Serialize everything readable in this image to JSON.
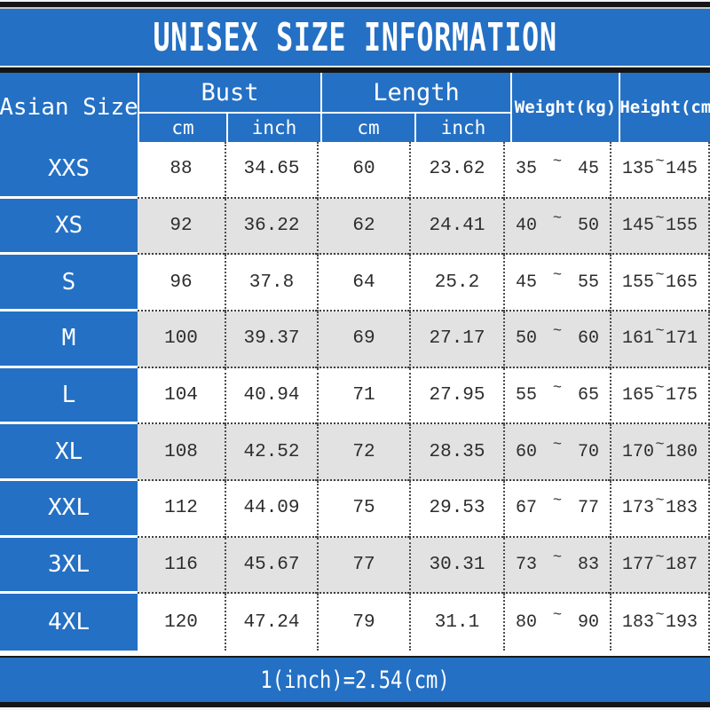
{
  "title": "UNISEX SIZE INFORMATION",
  "footer_note": "1(inch)=2.54(cm)",
  "symbols": {
    "range": "~"
  },
  "colors": {
    "accent_blue": "#2470c4",
    "row_alt_gray": "#e3e2e2",
    "text_dark": "#2d2d2d",
    "header_text": "#ffffff"
  },
  "header": {
    "asian_size": "Asian Size",
    "bust": "Bust",
    "length": "Length",
    "weight": "Weight(kg)",
    "height": "Height(cm)",
    "sub_cm_1": "cm",
    "sub_inch_1": "inch",
    "sub_cm_2": "cm",
    "sub_inch_2": "inch"
  },
  "table": {
    "rows": [
      {
        "size": "XXS",
        "bust_cm": "88",
        "bust_inch": "34.65",
        "length_cm": "60",
        "length_inch": "23.62",
        "weight": [
          "35",
          "45"
        ],
        "height": [
          "135",
          "145"
        ]
      },
      {
        "size": "XS",
        "bust_cm": "92",
        "bust_inch": "36.22",
        "length_cm": "62",
        "length_inch": "24.41",
        "weight": [
          "40",
          "50"
        ],
        "height": [
          "145",
          "155"
        ]
      },
      {
        "size": "S",
        "bust_cm": "96",
        "bust_inch": "37.8",
        "length_cm": "64",
        "length_inch": "25.2",
        "weight": [
          "45",
          "55"
        ],
        "height": [
          "155",
          "165"
        ]
      },
      {
        "size": "M",
        "bust_cm": "100",
        "bust_inch": "39.37",
        "length_cm": "69",
        "length_inch": "27.17",
        "weight": [
          "50",
          "60"
        ],
        "height": [
          "161",
          "171"
        ]
      },
      {
        "size": "L",
        "bust_cm": "104",
        "bust_inch": "40.94",
        "length_cm": "71",
        "length_inch": "27.95",
        "weight": [
          "55",
          "65"
        ],
        "height": [
          "165",
          "175"
        ]
      },
      {
        "size": "XL",
        "bust_cm": "108",
        "bust_inch": "42.52",
        "length_cm": "72",
        "length_inch": "28.35",
        "weight": [
          "60",
          "70"
        ],
        "height": [
          "170",
          "180"
        ]
      },
      {
        "size": "XXL",
        "bust_cm": "112",
        "bust_inch": "44.09",
        "length_cm": "75",
        "length_inch": "29.53",
        "weight": [
          "67",
          "77"
        ],
        "height": [
          "173",
          "183"
        ]
      },
      {
        "size": "3XL",
        "bust_cm": "116",
        "bust_inch": "45.67",
        "length_cm": "77",
        "length_inch": "30.31",
        "weight": [
          "73",
          "83"
        ],
        "height": [
          "177",
          "187"
        ]
      },
      {
        "size": "4XL",
        "bust_cm": "120",
        "bust_inch": "47.24",
        "length_cm": "79",
        "length_inch": "31.1",
        "weight": [
          "80",
          "90"
        ],
        "height": [
          "183",
          "193"
        ]
      }
    ]
  },
  "chart_data": {
    "type": "table",
    "title": "UNISEX SIZE INFORMATION",
    "columns": [
      "Asian Size",
      "Bust cm",
      "Bust inch",
      "Length cm",
      "Length inch",
      "Weight(kg)",
      "Height(cm)"
    ],
    "rows": [
      [
        "XXS",
        88,
        34.65,
        60,
        23.62,
        "35~45",
        "135~145"
      ],
      [
        "XS",
        92,
        36.22,
        62,
        24.41,
        "40~50",
        "145~155"
      ],
      [
        "S",
        96,
        37.8,
        64,
        25.2,
        "45~55",
        "155~165"
      ],
      [
        "M",
        100,
        39.37,
        69,
        27.17,
        "50~60",
        "161~171"
      ],
      [
        "L",
        104,
        40.94,
        71,
        27.95,
        "55~65",
        "165~175"
      ],
      [
        "XL",
        108,
        42.52,
        72,
        28.35,
        "60~70",
        "170~180"
      ],
      [
        "XXL",
        112,
        44.09,
        75,
        29.53,
        "67~77",
        "173~183"
      ],
      [
        "3XL",
        116,
        45.67,
        77,
        30.31,
        "73~83",
        "177~187"
      ],
      [
        "4XL",
        120,
        47.24,
        79,
        31.1,
        "80~90",
        "183~193"
      ]
    ],
    "footnote": "1(inch)=2.54(cm)"
  }
}
